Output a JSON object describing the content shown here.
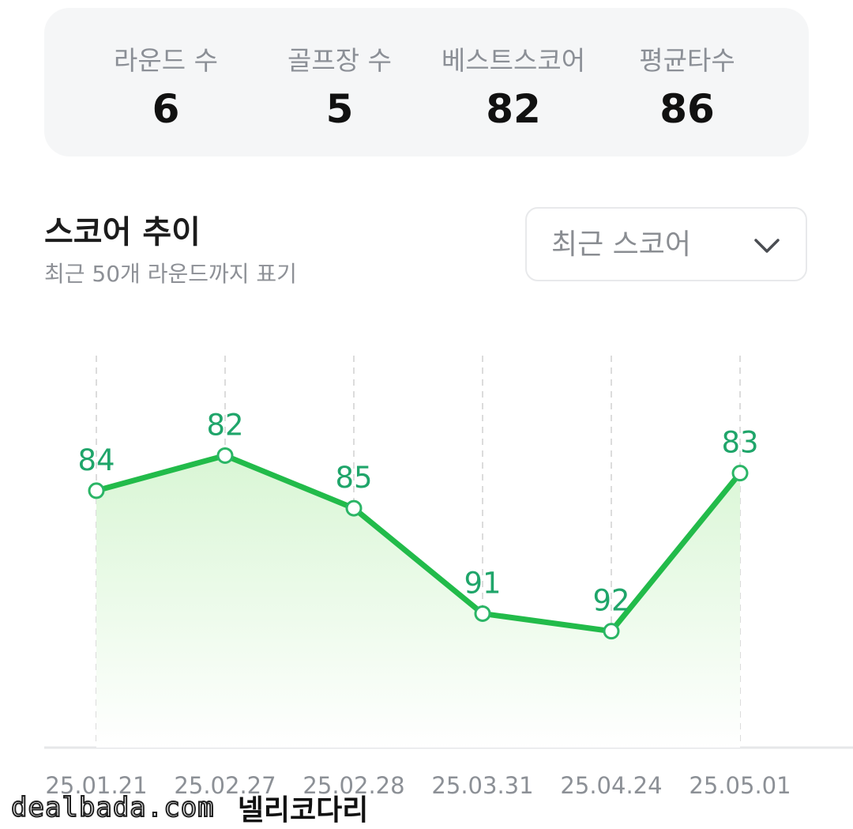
{
  "stats": [
    {
      "label": "라운드 수",
      "value": "6"
    },
    {
      "label": "골프장 수",
      "value": "5"
    },
    {
      "label": "베스트스코어",
      "value": "82"
    },
    {
      "label": "평균타수",
      "value": "86"
    }
  ],
  "section": {
    "title": "스코어 추이",
    "subtitle": "최근 50개 라운드까지 표기"
  },
  "dropdown": {
    "selected": "최근 스코어",
    "icon": "chevron-down-icon"
  },
  "colors": {
    "line": "#22bb4a",
    "value_label": "#1fa56a",
    "area_top": "#dcf7d9",
    "grid": "#dcdcdc"
  },
  "chart_data": {
    "type": "line",
    "categories": [
      "25.01.21",
      "25.02.27",
      "25.02.28",
      "25.03.31",
      "25.04.24",
      "25.05.01"
    ],
    "series": [
      {
        "values": [
          84,
          82,
          85,
          91,
          92,
          83
        ]
      }
    ],
    "data_labels": [
      "84",
      "82",
      "85",
      "91",
      "92",
      "83"
    ],
    "ylim": [
      80,
      93.5
    ],
    "y_inverted": true,
    "grid": "vertical-dashed",
    "area_fill": true
  },
  "watermark": {
    "site": "dealbada.com",
    "author": "넬리코다리"
  }
}
